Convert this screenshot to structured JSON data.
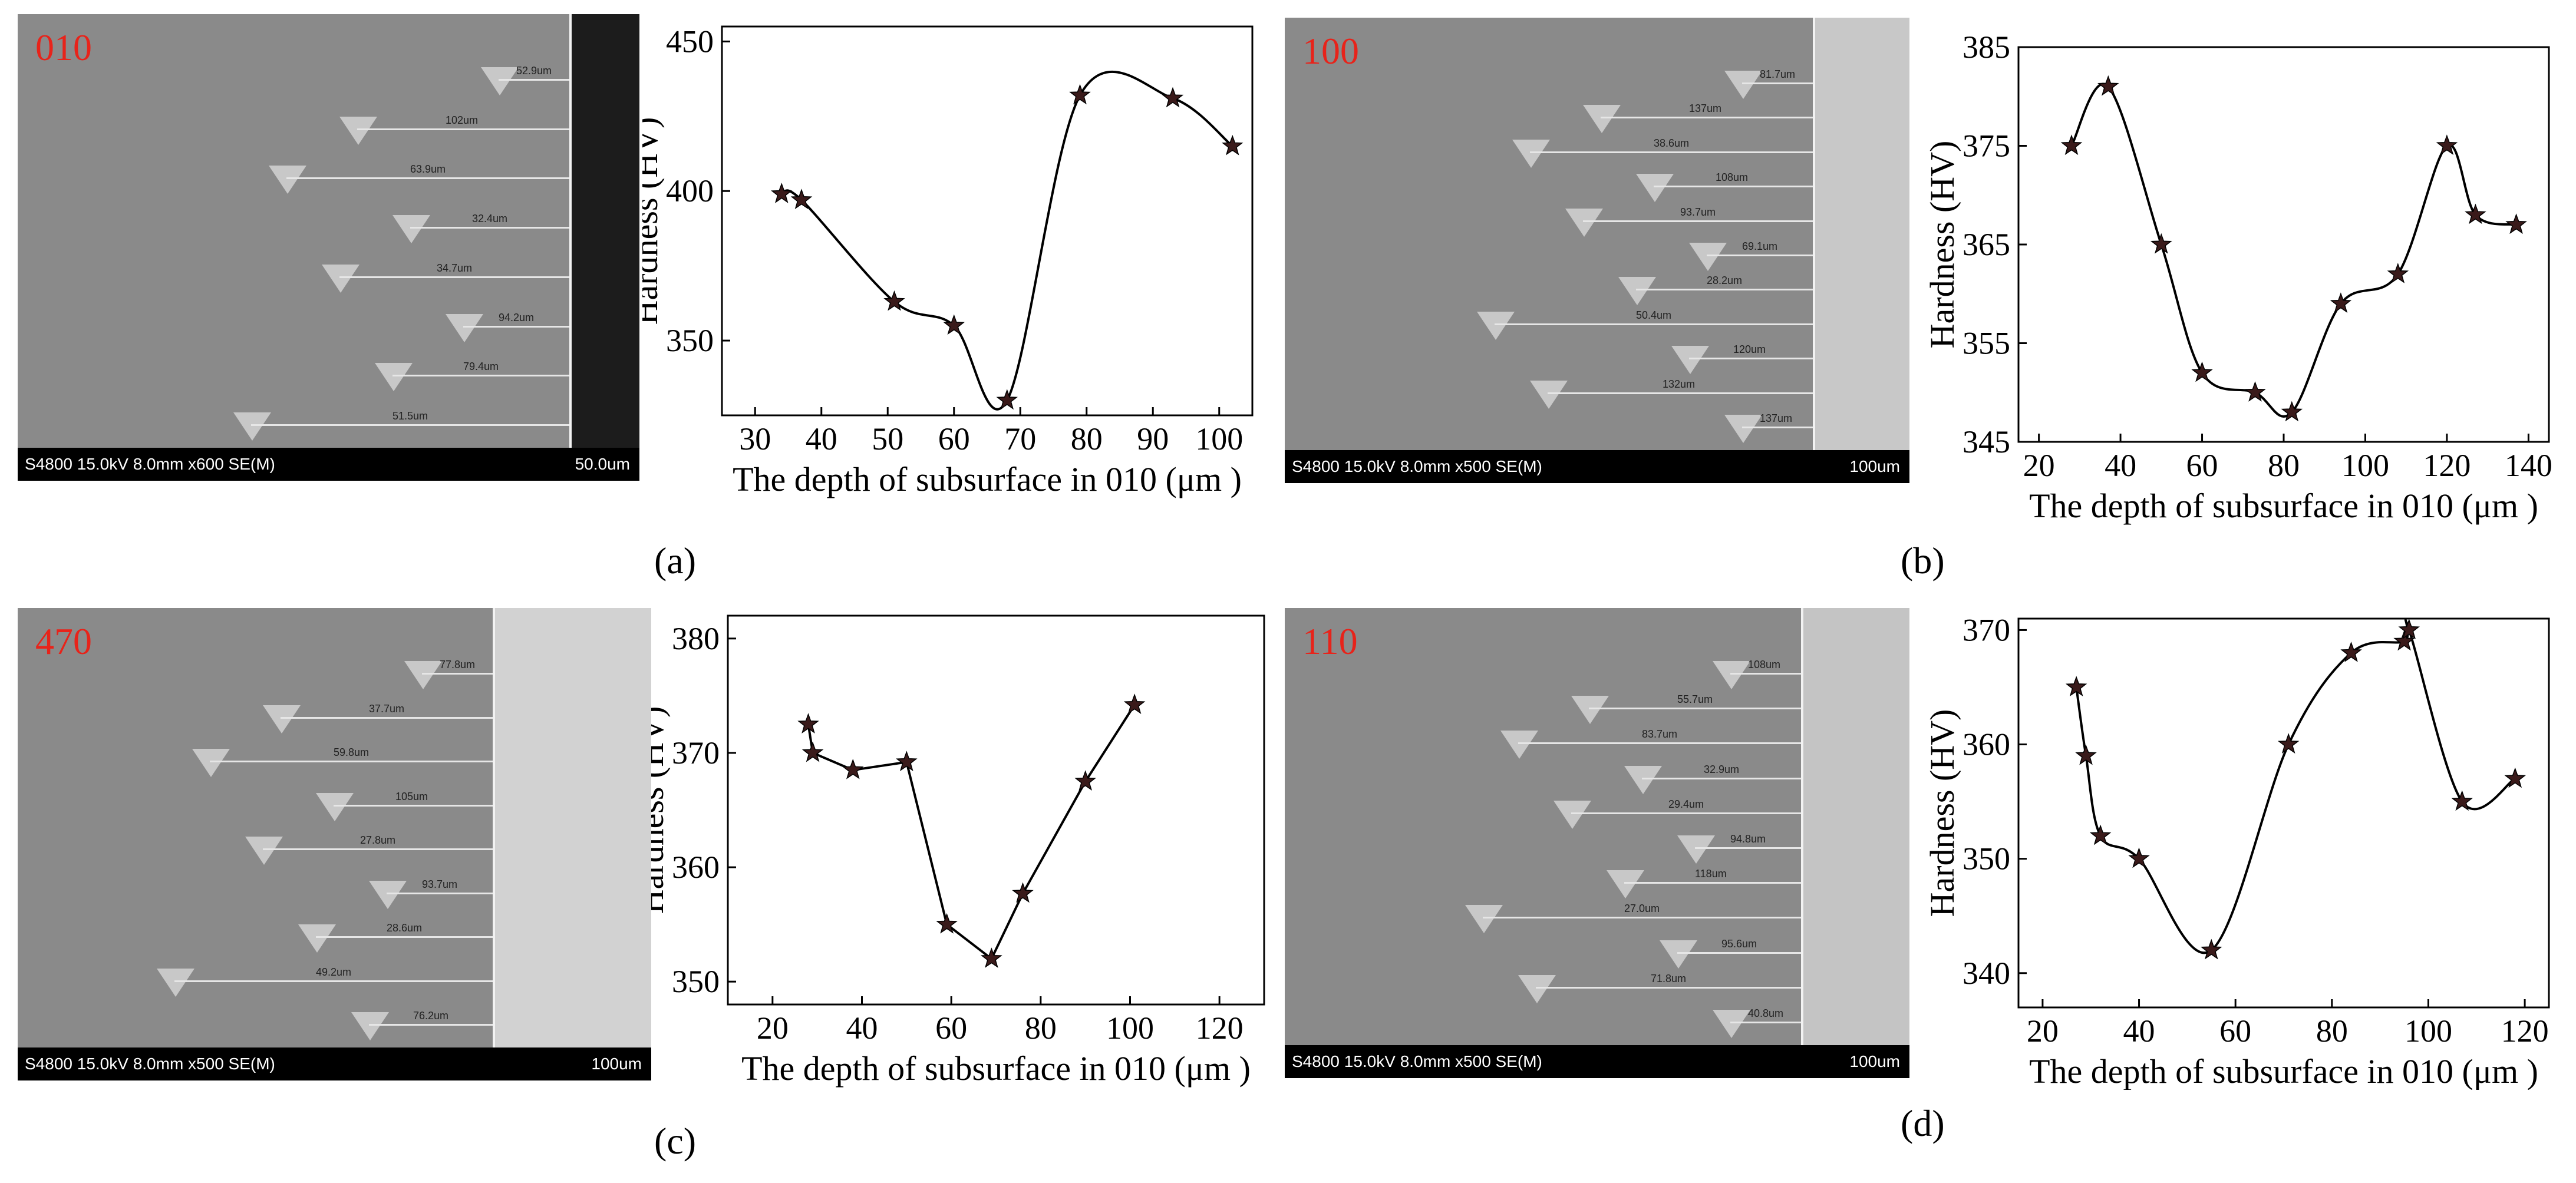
{
  "sem_panels": [
    {
      "id": "a",
      "orientation": "010",
      "footer_left": "S4800 15.0kV 8.0mm x600 SE(M)",
      "footer_right": "50.0um",
      "measurements": [
        "52.9um",
        "102um",
        "63.9um",
        "32.4um",
        "34.7um",
        "94.2um",
        "79.4um",
        "51.5um"
      ]
    },
    {
      "id": "b",
      "orientation": "100",
      "footer_left": "S4800 15.0kV 8.0mm x500 SE(M)",
      "footer_right": "100um",
      "measurements": [
        "81.7um",
        "137um",
        "38.6um",
        "108um",
        "93.7um",
        "69.1um",
        "28.2um",
        "50.4um",
        "120um",
        "132um",
        "137um"
      ]
    },
    {
      "id": "c",
      "orientation": "470",
      "footer_left": "S4800 15.0kV 8.0mm x500 SE(M)",
      "footer_right": "100um",
      "measurements": [
        "77.8um",
        "37.7um",
        "59.8um",
        "105um",
        "27.8um",
        "93.7um",
        "28.6um",
        "49.2um",
        "76.2um"
      ]
    },
    {
      "id": "d",
      "orientation": "110",
      "footer_left": "S4800 15.0kV 8.0mm x500 SE(M)",
      "footer_right": "100um",
      "measurements": [
        "108um",
        "55.7um",
        "83.7um",
        "32.9um",
        "29.4um",
        "94.8um",
        "118um",
        "27.0um",
        "95.6um",
        "71.8um",
        "40.8um"
      ]
    }
  ],
  "panel_labels": [
    "(a)",
    "(b)",
    "(c)",
    "(d)"
  ],
  "chart_data": [
    {
      "type": "line",
      "panel": "a",
      "xlabel": "The depth of subsurface in 010 (μm )",
      "ylabel": "Hardness (HV)",
      "xlim": [
        25,
        105
      ],
      "ylim": [
        325,
        455
      ],
      "xticks": [
        30,
        40,
        50,
        60,
        70,
        80,
        90,
        100
      ],
      "yticks": [
        350,
        400,
        450
      ],
      "smooth": true,
      "marker": "star",
      "x": [
        34,
        37,
        51,
        60,
        68,
        79,
        93,
        102
      ],
      "y": [
        399,
        397,
        363,
        355,
        330,
        432,
        431,
        415
      ]
    },
    {
      "type": "line",
      "panel": "b",
      "xlabel": "The depth of subsurface in 010 (μm )",
      "ylabel": "Hardness (HV)",
      "xlim": [
        15,
        145
      ],
      "ylim": [
        345,
        385
      ],
      "xticks": [
        20,
        40,
        60,
        80,
        100,
        120,
        140
      ],
      "yticks": [
        345,
        355,
        365,
        375,
        385
      ],
      "smooth": true,
      "marker": "star",
      "x": [
        28,
        37,
        50,
        60,
        73,
        82,
        94,
        108,
        120,
        127,
        137
      ],
      "y": [
        375,
        381,
        365,
        352,
        350,
        348,
        359,
        362,
        375,
        368,
        367
      ]
    },
    {
      "type": "line",
      "panel": "c",
      "xlabel": "The depth of subsurface in 010 (μm )",
      "ylabel": "Hardness (HV)",
      "xlim": [
        10,
        130
      ],
      "ylim": [
        348,
        382
      ],
      "xticks": [
        20,
        40,
        60,
        80,
        100,
        120
      ],
      "yticks": [
        350,
        360,
        370,
        380
      ],
      "smooth": false,
      "marker": "star",
      "x": [
        28,
        29,
        38,
        50,
        59,
        69,
        76,
        90,
        101
      ],
      "y": [
        372.5,
        370,
        368.5,
        369.2,
        355,
        352,
        357.7,
        367.5,
        374.2
      ]
    },
    {
      "type": "line",
      "panel": "d",
      "xlabel": "The depth of subsurface in 010 (μm )",
      "ylabel": "Hardness (HV)",
      "xlim": [
        15,
        125
      ],
      "ylim": [
        337,
        371
      ],
      "xticks": [
        20,
        40,
        60,
        80,
        100,
        120
      ],
      "yticks": [
        340,
        350,
        360,
        370
      ],
      "smooth": true,
      "marker": "star",
      "x": [
        27,
        29,
        32,
        40,
        55,
        71,
        84,
        95,
        96,
        107,
        118
      ],
      "y": [
        365,
        359,
        352,
        350,
        342,
        360,
        368,
        369,
        370,
        355,
        357
      ]
    }
  ]
}
